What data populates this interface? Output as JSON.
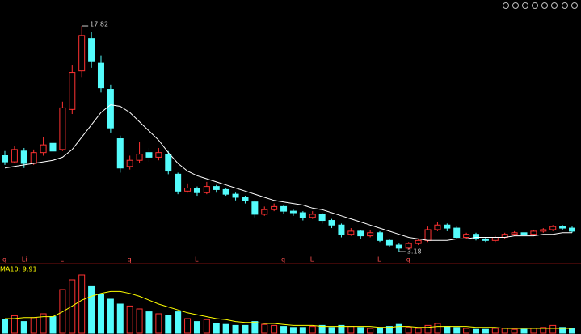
{
  "chart_data": {
    "type": "candlestick",
    "ylim": [
      2.5,
      19.5
    ],
    "up_color": "#ff3232",
    "down_color": "#54fcfc",
    "ma_color": "#ffffff",
    "candles": [
      [
        9.4,
        9.7,
        8.8,
        9.0
      ],
      [
        9.0,
        10.0,
        8.9,
        9.8
      ],
      [
        9.7,
        9.9,
        8.6,
        8.9
      ],
      [
        8.9,
        9.8,
        8.8,
        9.6
      ],
      [
        9.6,
        10.6,
        9.4,
        10.1
      ],
      [
        10.2,
        10.4,
        9.4,
        9.7
      ],
      [
        9.8,
        12.9,
        9.7,
        12.5
      ],
      [
        12.4,
        15.3,
        12.1,
        14.8
      ],
      [
        14.9,
        17.82,
        14.5,
        17.2
      ],
      [
        17.0,
        17.4,
        15.1,
        15.5
      ],
      [
        15.4,
        15.9,
        13.5,
        13.8
      ],
      [
        13.7,
        14.0,
        10.9,
        11.2
      ],
      [
        10.5,
        10.7,
        8.3,
        8.6
      ],
      [
        8.7,
        9.4,
        8.5,
        9.1
      ],
      [
        9.1,
        10.3,
        8.9,
        9.5
      ],
      [
        9.6,
        9.9,
        9.0,
        9.3
      ],
      [
        9.3,
        9.9,
        9.1,
        9.6
      ],
      [
        9.5,
        9.7,
        8.2,
        8.4
      ],
      [
        8.2,
        8.3,
        6.9,
        7.1
      ],
      [
        7.1,
        7.6,
        7.0,
        7.3
      ],
      [
        7.3,
        7.4,
        6.8,
        7.0
      ],
      [
        7.0,
        7.7,
        6.9,
        7.4
      ],
      [
        7.4,
        7.5,
        7.0,
        7.2
      ],
      [
        7.2,
        7.3,
        6.8,
        6.9
      ],
      [
        6.9,
        7.0,
        6.5,
        6.7
      ],
      [
        6.7,
        6.8,
        6.3,
        6.5
      ],
      [
        6.4,
        6.5,
        5.4,
        5.6
      ],
      [
        5.6,
        6.1,
        5.5,
        5.9
      ],
      [
        5.9,
        6.3,
        5.8,
        6.1
      ],
      [
        6.1,
        6.2,
        5.6,
        5.8
      ],
      [
        5.8,
        5.9,
        5.5,
        5.7
      ],
      [
        5.7,
        5.8,
        5.2,
        5.4
      ],
      [
        5.4,
        5.8,
        5.3,
        5.6
      ],
      [
        5.6,
        5.7,
        5.0,
        5.2
      ],
      [
        5.2,
        5.3,
        4.7,
        4.9
      ],
      [
        4.9,
        5.0,
        4.1,
        4.3
      ],
      [
        4.3,
        4.7,
        4.2,
        4.5
      ],
      [
        4.5,
        4.6,
        4.0,
        4.2
      ],
      [
        4.2,
        4.6,
        4.1,
        4.4
      ],
      [
        4.4,
        4.5,
        3.8,
        3.9
      ],
      [
        3.9,
        4.0,
        3.5,
        3.6
      ],
      [
        3.6,
        3.7,
        3.18,
        3.4
      ],
      [
        3.4,
        3.8,
        3.3,
        3.7
      ],
      [
        3.7,
        4.0,
        3.6,
        3.9
      ],
      [
        3.9,
        4.8,
        3.8,
        4.6
      ],
      [
        4.6,
        5.1,
        4.5,
        4.9
      ],
      [
        4.9,
        5.0,
        4.5,
        4.7
      ],
      [
        4.7,
        4.8,
        4.0,
        4.1
      ],
      [
        4.1,
        4.4,
        4.0,
        4.3
      ],
      [
        4.3,
        4.4,
        3.9,
        4.0
      ],
      [
        4.0,
        4.1,
        3.8,
        3.9
      ],
      [
        3.9,
        4.2,
        3.8,
        4.1
      ],
      [
        4.1,
        4.4,
        4.0,
        4.3
      ],
      [
        4.3,
        4.5,
        4.2,
        4.4
      ],
      [
        4.4,
        4.5,
        4.2,
        4.3
      ],
      [
        4.3,
        4.6,
        4.2,
        4.5
      ],
      [
        4.5,
        4.7,
        4.4,
        4.6
      ],
      [
        4.6,
        4.9,
        4.5,
        4.8
      ],
      [
        4.8,
        4.9,
        4.6,
        4.7
      ],
      [
        4.7,
        4.8,
        4.4,
        4.5
      ]
    ],
    "ma": [
      8.6,
      8.7,
      8.8,
      8.9,
      9.0,
      9.1,
      9.3,
      9.8,
      10.6,
      11.4,
      12.2,
      12.7,
      12.6,
      12.2,
      11.6,
      11.0,
      10.4,
      9.6,
      8.9,
      8.4,
      8.1,
      7.9,
      7.7,
      7.5,
      7.3,
      7.1,
      6.9,
      6.7,
      6.5,
      6.4,
      6.3,
      6.2,
      6.0,
      5.9,
      5.7,
      5.5,
      5.3,
      5.1,
      4.9,
      4.7,
      4.5,
      4.3,
      4.1,
      4.0,
      3.9,
      3.9,
      3.9,
      4.0,
      4.0,
      4.1,
      4.1,
      4.1,
      4.1,
      4.2,
      4.2,
      4.2,
      4.3,
      4.3,
      4.4,
      4.4
    ],
    "markers": [
      "q",
      null,
      "Li",
      null,
      null,
      null,
      "L",
      null,
      null,
      null,
      null,
      null,
      null,
      "q",
      null,
      null,
      null,
      null,
      null,
      null,
      "L",
      null,
      null,
      null,
      null,
      null,
      null,
      null,
      null,
      "q",
      null,
      null,
      "L",
      null,
      null,
      null,
      null,
      null,
      null,
      "L",
      null,
      null,
      "q",
      null,
      null,
      null,
      null,
      null,
      null,
      null,
      null,
      null,
      null,
      null,
      null,
      null,
      null,
      null,
      null,
      null
    ],
    "volume_label": "MA10: 9.91",
    "volume_ylim": [
      0,
      60
    ],
    "volume_ma_color": "#ffff00",
    "volumes": [
      14,
      18,
      12,
      16,
      20,
      17,
      45,
      55,
      60,
      48,
      40,
      35,
      30,
      28,
      25,
      22,
      20,
      18,
      22,
      15,
      12,
      14,
      10,
      9,
      8,
      8,
      12,
      9,
      8,
      7,
      6,
      6,
      7,
      8,
      6,
      8,
      7,
      6,
      5,
      6,
      7,
      9,
      6,
      5,
      8,
      10,
      7,
      6,
      5,
      4,
      4,
      5,
      5,
      4,
      4,
      5,
      6,
      8,
      6,
      5
    ],
    "volume_ma": [
      15,
      15,
      16,
      16,
      17,
      17,
      22,
      28,
      34,
      38,
      41,
      43,
      43,
      41,
      38,
      34,
      30,
      27,
      24,
      21,
      19,
      17,
      15,
      14,
      12,
      11,
      11,
      10,
      10,
      9,
      8,
      8,
      8,
      7,
      7,
      7,
      7,
      7,
      7,
      6,
      6,
      7,
      7,
      6,
      6,
      7,
      7,
      7,
      7,
      6,
      6,
      6,
      5,
      5,
      5,
      5,
      5,
      5,
      5,
      5
    ]
  }
}
